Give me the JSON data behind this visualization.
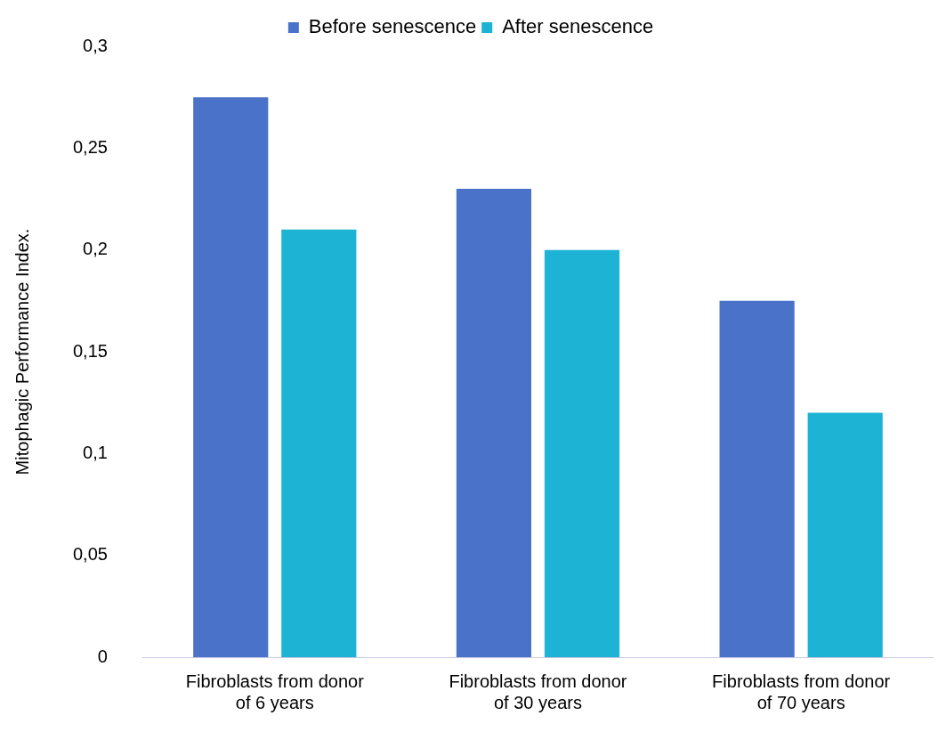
{
  "chart_data": {
    "type": "bar",
    "ylabel": "Mitophagic Performance Index.",
    "categories": [
      "Fibroblasts from donor of 6 years",
      "Fibroblasts from donor of 30 years",
      "Fibroblasts from donor of 70 years"
    ],
    "series": [
      {
        "name": "Before senescence",
        "color": "#4a72c8",
        "values": [
          0.275,
          0.23,
          0.175
        ]
      },
      {
        "name": "After senescence",
        "color": "#1cb3d4",
        "values": [
          0.21,
          0.2,
          0.12
        ]
      }
    ],
    "ylim": [
      0,
      0.3
    ],
    "yticks": [
      0,
      {
        "value": 0.05,
        "label": "0,05"
      },
      {
        "value": 0.1,
        "label": "0,1"
      },
      {
        "value": 0.15,
        "label": "0,15"
      },
      {
        "value": 0.2,
        "label": "0,2"
      },
      {
        "value": 0.25,
        "label": "0,25"
      },
      {
        "value": 0.3,
        "label": "0,3"
      }
    ],
    "grid": false,
    "legend": "top"
  }
}
